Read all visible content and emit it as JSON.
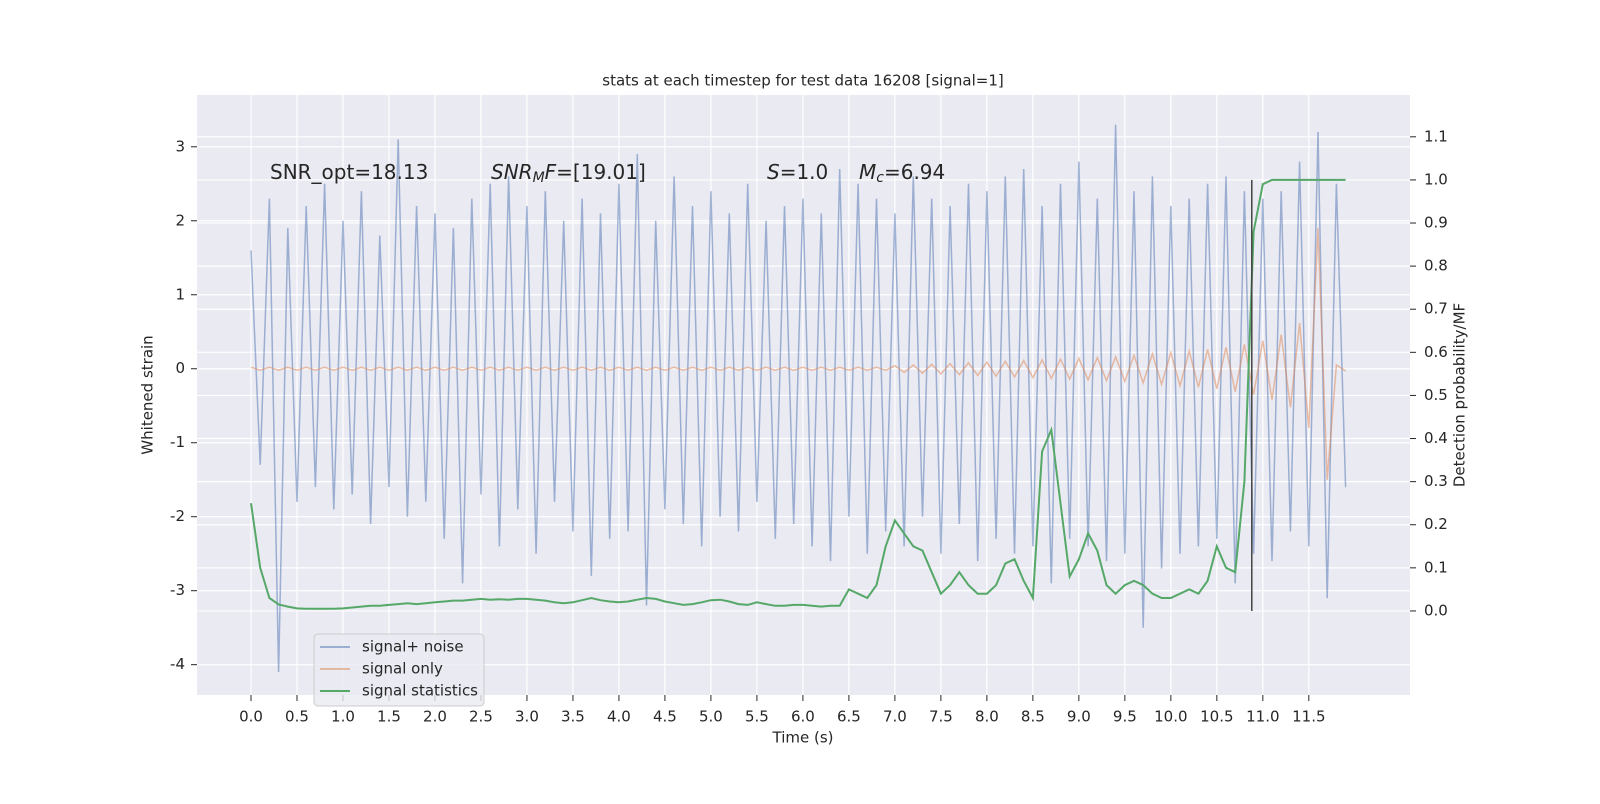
{
  "chart_data": {
    "type": "line",
    "title": "stats at each timestep for test data 16208 [signal=1]",
    "xlabel": "Time (s)",
    "ylabel": "Whitened strain",
    "y2label": "Detection probability/MF",
    "annotations": [
      [
        {
          "t": "SNR_opt=18.13"
        }
      ],
      [
        {
          "t": "SNR",
          "style": "italic"
        },
        {
          "t": "M",
          "style": "sub"
        },
        {
          "t": "F",
          "style": "italic"
        },
        {
          "t": "=[19.01]"
        }
      ],
      [
        {
          "t": "S",
          "style": "italic"
        },
        {
          "t": "=1.0"
        }
      ],
      [
        {
          "t": "M",
          "style": "italic"
        },
        {
          "t": "c",
          "style": "sub"
        },
        {
          "t": "=6.94"
        }
      ]
    ],
    "marker_line": {
      "x": 10.88,
      "y2": [
        0,
        1
      ],
      "color": "#444444"
    },
    "grid": true,
    "legend": "lower left",
    "xlim": [
      -0.587,
      12.6
    ],
    "ylim": [
      -4.41,
      3.7
    ],
    "y2lim": [
      -0.195,
      1.197
    ],
    "xticks": [
      {
        "value": 0,
        "label": "0.0"
      },
      0.5,
      {
        "value": 1,
        "label": "1.0"
      },
      1.5,
      {
        "value": 2,
        "label": "2.0"
      },
      2.5,
      {
        "value": 3,
        "label": "3.0"
      },
      3.5,
      {
        "value": 4,
        "label": "4.0"
      },
      4.5,
      {
        "value": 5,
        "label": "5.0"
      },
      5.5,
      {
        "value": 6,
        "label": "6.0"
      },
      6.5,
      {
        "value": 7,
        "label": "7.0"
      },
      7.5,
      {
        "value": 8,
        "label": "8.0"
      },
      8.5,
      {
        "value": 9,
        "label": "9.0"
      },
      9.5,
      {
        "value": 10,
        "label": "10.0"
      },
      10.5,
      {
        "value": 11,
        "label": "11.0"
      },
      11.5
    ],
    "yticks": [
      -4,
      -3,
      -2,
      -1,
      0,
      1,
      2,
      3
    ],
    "y2ticks": [
      {
        "value": 0,
        "label": "0.0"
      },
      0.1,
      0.2,
      0.3,
      0.4,
      0.5,
      0.6,
      0.7,
      0.8,
      0.9,
      {
        "value": 1,
        "label": "1.0"
      },
      1.1
    ],
    "x": [
      0,
      0.1,
      0.2,
      0.3,
      0.4,
      0.5,
      0.6,
      0.7,
      0.8,
      0.9,
      1,
      1.1,
      1.2,
      1.3,
      1.4,
      1.5,
      1.6,
      1.7,
      1.8,
      1.9,
      2,
      2.1,
      2.2,
      2.3,
      2.4,
      2.5,
      2.6,
      2.7,
      2.8,
      2.9,
      3,
      3.1,
      3.2,
      3.3,
      3.4,
      3.5,
      3.6,
      3.7,
      3.8,
      3.9,
      4,
      4.1,
      4.2,
      4.3,
      4.4,
      4.5,
      4.6,
      4.7,
      4.8,
      4.9,
      5,
      5.1,
      5.2,
      5.3,
      5.4,
      5.5,
      5.6,
      5.7,
      5.8,
      5.9,
      6,
      6.1,
      6.2,
      6.3,
      6.4,
      6.5,
      6.6,
      6.7,
      6.8,
      6.9,
      7,
      7.1,
      7.2,
      7.3,
      7.4,
      7.5,
      7.6,
      7.7,
      7.8,
      7.9,
      8,
      8.1,
      8.2,
      8.3,
      8.4,
      8.5,
      8.6,
      8.7,
      8.8,
      8.9,
      9,
      9.1,
      9.2,
      9.3,
      9.4,
      9.5,
      9.6,
      9.7,
      9.8,
      9.9,
      10,
      10.1,
      10.2,
      10.3,
      10.4,
      10.5,
      10.6,
      10.7,
      10.8,
      10.9,
      11,
      11.1,
      11.2,
      11.3,
      11.4,
      11.5,
      11.6,
      11.7,
      11.8,
      11.9
    ],
    "series": [
      {
        "name": "signal+ noise",
        "color": "#4c72b0",
        "alpha": 0.5,
        "values": [
          1.6,
          -1.3,
          2.3,
          -4.1,
          1.9,
          -1.8,
          2.2,
          -1.6,
          2.5,
          -1.9,
          2.0,
          -1.7,
          2.4,
          -2.1,
          1.8,
          -1.6,
          3.1,
          -2.0,
          2.2,
          -1.8,
          2.1,
          -2.3,
          1.9,
          -2.9,
          2.3,
          -1.7,
          2.5,
          -2.4,
          2.6,
          -1.9,
          2.2,
          -2.5,
          2.4,
          -1.8,
          2.0,
          -2.2,
          2.3,
          -2.8,
          2.1,
          -2.3,
          2.5,
          -2.2,
          2.9,
          -3.2,
          2.0,
          -1.9,
          2.6,
          -2.1,
          2.2,
          -2.4,
          2.4,
          -2.0,
          2.1,
          -2.2,
          2.5,
          -1.8,
          2.0,
          -2.3,
          2.2,
          -2.1,
          2.3,
          -2.4,
          2.1,
          -2.6,
          2.7,
          -2.0,
          2.5,
          -2.5,
          2.3,
          -2.2,
          2.1,
          -2.4,
          2.6,
          -2.0,
          2.3,
          -2.5,
          2.2,
          -2.1,
          2.5,
          -2.6,
          2.4,
          -2.3,
          2.6,
          -2.5,
          2.7,
          -2.4,
          2.2,
          -2.9,
          2.5,
          -2.3,
          2.8,
          -2.4,
          2.3,
          -2.6,
          3.3,
          -2.5,
          2.4,
          -3.5,
          2.6,
          -2.7,
          2.2,
          -2.5,
          2.3,
          -2.4,
          2.5,
          -2.3,
          2.6,
          -2.9,
          2.4,
          -2.5,
          2.3,
          -2.6,
          2.4,
          -2.2,
          2.8,
          -2.4,
          3.2,
          -3.1,
          2.5,
          -1.6
        ]
      },
      {
        "name": "signal only",
        "color": "#dd8452",
        "alpha": 0.5,
        "values": [
          0.02,
          -0.02,
          0.02,
          -0.02,
          0.02,
          -0.02,
          0.02,
          -0.02,
          0.02,
          -0.02,
          0.02,
          -0.02,
          0.02,
          -0.02,
          0.02,
          -0.02,
          0.02,
          -0.02,
          0.02,
          -0.02,
          0.02,
          -0.02,
          0.02,
          -0.02,
          0.02,
          -0.02,
          0.02,
          -0.02,
          0.02,
          -0.02,
          0.02,
          -0.02,
          0.02,
          -0.02,
          0.02,
          -0.02,
          0.02,
          -0.02,
          0.02,
          -0.02,
          0.02,
          -0.02,
          0.02,
          -0.02,
          0.02,
          -0.02,
          0.02,
          -0.02,
          0.02,
          -0.02,
          0.02,
          -0.02,
          0.02,
          -0.02,
          0.02,
          -0.02,
          0.02,
          -0.02,
          0.02,
          -0.02,
          0.02,
          -0.02,
          0.02,
          -0.02,
          0.02,
          -0.02,
          0.02,
          -0.02,
          0.02,
          -0.02,
          0.04,
          -0.05,
          0.05,
          -0.06,
          0.06,
          -0.07,
          0.07,
          -0.08,
          0.08,
          -0.09,
          0.09,
          -0.1,
          0.1,
          -0.11,
          0.11,
          -0.12,
          0.12,
          -0.13,
          0.13,
          -0.14,
          0.14,
          -0.15,
          0.15,
          -0.16,
          0.16,
          -0.17,
          0.18,
          -0.19,
          0.2,
          -0.21,
          0.22,
          -0.23,
          0.24,
          -0.25,
          0.26,
          -0.27,
          0.29,
          -0.31,
          0.33,
          -0.35,
          0.38,
          -0.42,
          0.46,
          -0.52,
          0.62,
          -0.8,
          1.9,
          -1.5,
          0.05,
          -0.03
        ]
      },
      {
        "name": "signal statistics",
        "color": "#55a868",
        "alpha": 1,
        "axis": "y2",
        "values": [
          0.25,
          0.1,
          0.03,
          0.015,
          0.01,
          0.006,
          0.005,
          0.005,
          0.005,
          0.005,
          0.006,
          0.008,
          0.01,
          0.012,
          0.012,
          0.014,
          0.016,
          0.018,
          0.016,
          0.018,
          0.02,
          0.022,
          0.024,
          0.024,
          0.026,
          0.028,
          0.026,
          0.027,
          0.026,
          0.028,
          0.028,
          0.026,
          0.024,
          0.02,
          0.018,
          0.02,
          0.025,
          0.03,
          0.025,
          0.022,
          0.02,
          0.022,
          0.026,
          0.03,
          0.028,
          0.022,
          0.018,
          0.014,
          0.016,
          0.02,
          0.025,
          0.026,
          0.022,
          0.016,
          0.014,
          0.02,
          0.016,
          0.012,
          0.012,
          0.014,
          0.014,
          0.012,
          0.01,
          0.012,
          0.012,
          0.05,
          0.04,
          0.03,
          0.06,
          0.15,
          0.21,
          0.18,
          0.15,
          0.14,
          0.09,
          0.04,
          0.06,
          0.09,
          0.06,
          0.04,
          0.04,
          0.06,
          0.11,
          0.12,
          0.07,
          0.03,
          0.37,
          0.42,
          0.25,
          0.08,
          0.12,
          0.18,
          0.14,
          0.06,
          0.04,
          0.06,
          0.07,
          0.06,
          0.04,
          0.03,
          0.03,
          0.04,
          0.05,
          0.04,
          0.07,
          0.15,
          0.1,
          0.09,
          0.3,
          0.88,
          0.99,
          1.0,
          1.0,
          1.0,
          1.0,
          1.0,
          1.0,
          1.0,
          1.0,
          1.0
        ]
      }
    ]
  }
}
